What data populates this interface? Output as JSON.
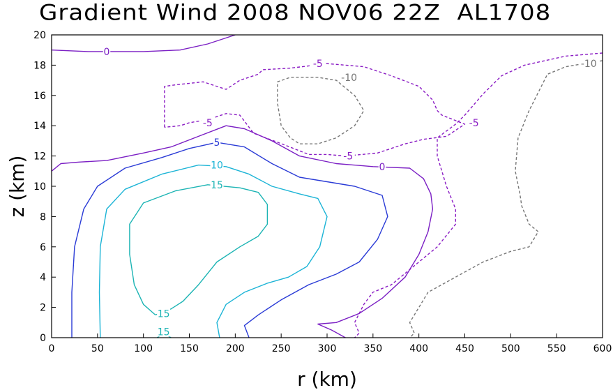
{
  "chart_data": {
    "type": "contour",
    "title": "Gradient Wind 2008 NOV06 22Z  AL1708",
    "xlabel": "r (km)",
    "ylabel": "z (km)",
    "xlim": [
      0,
      600
    ],
    "ylim": [
      0,
      20
    ],
    "xticks": [
      "0",
      "50",
      "100",
      "150",
      "200",
      "250",
      "300",
      "350",
      "400",
      "450",
      "500",
      "550",
      "600"
    ],
    "yticks": [
      "0",
      "2",
      "4",
      "6",
      "8",
      "10",
      "12",
      "14",
      "16",
      "18",
      "20"
    ],
    "grid": false,
    "contours": [
      {
        "level": 0,
        "color": "#7b1fc4",
        "dash": false,
        "segments": [
          [
            [
              0,
              19.0
            ],
            [
              40,
              18.9
            ],
            [
              100,
              18.9
            ],
            [
              140,
              19.0
            ],
            [
              170,
              19.4
            ],
            [
              200,
              20.0
            ]
          ],
          [
            [
              0,
              11.0
            ],
            [
              10,
              11.5
            ],
            [
              30,
              11.6
            ],
            [
              60,
              11.7
            ],
            [
              100,
              12.2
            ],
            [
              130,
              12.6
            ],
            [
              160,
              13.3
            ],
            [
              190,
              14.0
            ],
            [
              210,
              13.8
            ],
            [
              240,
              13.0
            ],
            [
              270,
              12.0
            ],
            [
              310,
              11.5
            ],
            [
              350,
              11.3
            ],
            [
              390,
              11.2
            ],
            [
              405,
              10.5
            ],
            [
              413,
              9.5
            ],
            [
              415,
              8.5
            ],
            [
              410,
              7.0
            ],
            [
              400,
              5.5
            ],
            [
              385,
              4.0
            ],
            [
              360,
              2.6
            ],
            [
              335,
              1.6
            ],
            [
              310,
              1.0
            ],
            [
              290,
              0.9
            ],
            [
              305,
              0.5
            ],
            [
              320,
              0.0
            ]
          ]
        ]
      },
      {
        "level": 5,
        "color": "#2a3bd6",
        "dash": false,
        "segments": [
          [
            [
              22,
              0
            ],
            [
              22,
              3
            ],
            [
              25,
              6
            ],
            [
              35,
              8.5
            ],
            [
              50,
              10.0
            ],
            [
              80,
              11.2
            ],
            [
              120,
              11.9
            ],
            [
              150,
              12.5
            ],
            [
              180,
              12.9
            ],
            [
              210,
              12.6
            ],
            [
              240,
              11.5
            ],
            [
              270,
              10.6
            ],
            [
              300,
              10.3
            ],
            [
              330,
              10.0
            ],
            [
              360,
              9.4
            ],
            [
              366,
              8.0
            ],
            [
              355,
              6.5
            ],
            [
              335,
              5.0
            ],
            [
              310,
              4.2
            ],
            [
              280,
              3.5
            ],
            [
              250,
              2.5
            ],
            [
              225,
              1.5
            ],
            [
              210,
              0.8
            ],
            [
              215,
              0.0
            ]
          ]
        ]
      },
      {
        "level": 10,
        "color": "#1cb4d6",
        "dash": false,
        "segments": [
          [
            [
              53,
              0
            ],
            [
              52,
              3
            ],
            [
              53,
              6
            ],
            [
              60,
              8.5
            ],
            [
              80,
              9.8
            ],
            [
              120,
              10.8
            ],
            [
              160,
              11.4
            ],
            [
              190,
              11.3
            ],
            [
              215,
              10.8
            ],
            [
              240,
              10.0
            ],
            [
              270,
              9.5
            ],
            [
              290,
              9.2
            ],
            [
              300,
              8.0
            ],
            [
              292,
              6.0
            ],
            [
              278,
              4.7
            ],
            [
              258,
              4.0
            ],
            [
              235,
              3.6
            ],
            [
              210,
              3.0
            ],
            [
              190,
              2.2
            ],
            [
              180,
              1.0
            ],
            [
              183,
              0.0
            ]
          ]
        ]
      },
      {
        "level": 15,
        "color": "#1cb4b4",
        "dash": false,
        "segments": [
          [
            [
              113,
              1.5
            ],
            [
              100,
              2.2
            ],
            [
              90,
              3.5
            ],
            [
              85,
              5.5
            ],
            [
              85,
              7.5
            ],
            [
              100,
              8.9
            ],
            [
              135,
              9.7
            ],
            [
              170,
              10.1
            ],
            [
              205,
              9.9
            ],
            [
              225,
              9.6
            ],
            [
              235,
              8.8
            ],
            [
              235,
              7.5
            ],
            [
              225,
              6.7
            ],
            [
              205,
              6.0
            ],
            [
              180,
              5.0
            ],
            [
              160,
              3.5
            ],
            [
              143,
              2.4
            ],
            [
              130,
              1.9
            ],
            [
              113,
              1.5
            ]
          ],
          [
            [
              115,
              0.0
            ],
            [
              122,
              0.3
            ],
            [
              130,
              0.0
            ]
          ]
        ]
      },
      {
        "level": -5,
        "color": "#8a1cc4",
        "dash": true,
        "segments": [
          [
            [
              123,
              13.9
            ],
            [
              123,
              15.5
            ],
            [
              123,
              16.6
            ],
            [
              135,
              16.7
            ],
            [
              165,
              16.9
            ],
            [
              190,
              16.4
            ],
            [
              205,
              17.0
            ],
            [
              225,
              17.4
            ],
            [
              230,
              17.7
            ],
            [
              260,
              17.8
            ],
            [
              300,
              18.1
            ],
            [
              340,
              17.9
            ],
            [
              370,
              17.3
            ],
            [
              400,
              16.6
            ],
            [
              415,
              15.7
            ],
            [
              420,
              15.0
            ],
            [
              425,
              14.7
            ],
            [
              450,
              14.1
            ],
            [
              430,
              13.3
            ],
            [
              405,
              13.1
            ],
            [
              385,
              12.8
            ],
            [
              355,
              12.2
            ],
            [
              320,
              12.0
            ],
            [
              300,
              12.1
            ],
            [
              280,
              12.1
            ],
            [
              255,
              12.7
            ],
            [
              220,
              13.5
            ],
            [
              205,
              14.7
            ],
            [
              190,
              14.8
            ],
            [
              170,
              14.4
            ],
            [
              150,
              14.2
            ],
            [
              140,
              14.0
            ],
            [
              123,
              13.9
            ]
          ],
          [
            [
              600,
              18.8
            ],
            [
              560,
              18.6
            ],
            [
              515,
              18.0
            ],
            [
              490,
              17.3
            ],
            [
              470,
              16.1
            ],
            [
              450,
              14.7
            ],
            [
              440,
              14.1
            ],
            [
              420,
              13.2
            ],
            [
              420,
              12.0
            ],
            [
              430,
              10.0
            ],
            [
              440,
              8.5
            ],
            [
              440,
              7.5
            ],
            [
              420,
              6.0
            ],
            [
              400,
              5.0
            ],
            [
              370,
              3.5
            ],
            [
              350,
              3.0
            ],
            [
              340,
              2.2
            ],
            [
              330,
              1.0
            ],
            [
              335,
              0.3
            ],
            [
              330,
              0.0
            ]
          ]
        ]
      },
      {
        "level": -10,
        "color": "#777777",
        "dash": true,
        "segments": [
          [
            [
              250,
              14.0
            ],
            [
              246,
              15.5
            ],
            [
              246,
              16.9
            ],
            [
              260,
              17.2
            ],
            [
              290,
              17.2
            ],
            [
              310,
              17.0
            ],
            [
              320,
              16.5
            ],
            [
              330,
              16.0
            ],
            [
              340,
              15.0
            ],
            [
              330,
              14.0
            ],
            [
              310,
              13.2
            ],
            [
              290,
              12.8
            ],
            [
              270,
              12.8
            ],
            [
              260,
              13.2
            ],
            [
              250,
              14.0
            ]
          ],
          [
            [
              600,
              18.3
            ],
            [
              580,
              18.1
            ],
            [
              560,
              17.9
            ],
            [
              540,
              17.4
            ],
            [
              520,
              15.0
            ],
            [
              508,
              13.2
            ],
            [
              505,
              11.0
            ],
            [
              510,
              9.5
            ],
            [
              512,
              8.7
            ],
            [
              520,
              7.5
            ],
            [
              530,
              7.0
            ],
            [
              520,
              6.0
            ],
            [
              500,
              5.7
            ],
            [
              470,
              5.0
            ],
            [
              440,
              4.0
            ],
            [
              410,
              3.0
            ],
            [
              400,
              2.0
            ],
            [
              390,
              1.0
            ],
            [
              395,
              0.3
            ],
            [
              390,
              0.0
            ]
          ]
        ]
      }
    ],
    "contour_labels": [
      {
        "text": "0",
        "level": 0,
        "x": 60,
        "y": 18.9
      },
      {
        "text": "0",
        "level": 0,
        "x": 360,
        "y": 11.3
      },
      {
        "text": "5",
        "level": 5,
        "x": 180,
        "y": 12.9
      },
      {
        "text": "10",
        "level": 10,
        "x": 180,
        "y": 11.4
      },
      {
        "text": "15",
        "level": 15,
        "x": 180,
        "y": 10.1
      },
      {
        "text": "15",
        "level": 15,
        "x": 122,
        "y": 1.6
      },
      {
        "text": "15",
        "level": 15,
        "x": 122,
        "y": 0.4
      },
      {
        "text": "-5",
        "level": -5,
        "x": 170,
        "y": 14.2
      },
      {
        "text": "-5",
        "level": -5,
        "x": 290,
        "y": 18.1
      },
      {
        "text": "-5",
        "level": -5,
        "x": 323,
        "y": 12.0
      },
      {
        "text": "-5",
        "level": -5,
        "x": 460,
        "y": 14.2
      },
      {
        "text": "-10",
        "level": -10,
        "x": 324,
        "y": 17.2
      },
      {
        "text": "-10",
        "level": -10,
        "x": 585,
        "y": 18.1
      }
    ]
  }
}
